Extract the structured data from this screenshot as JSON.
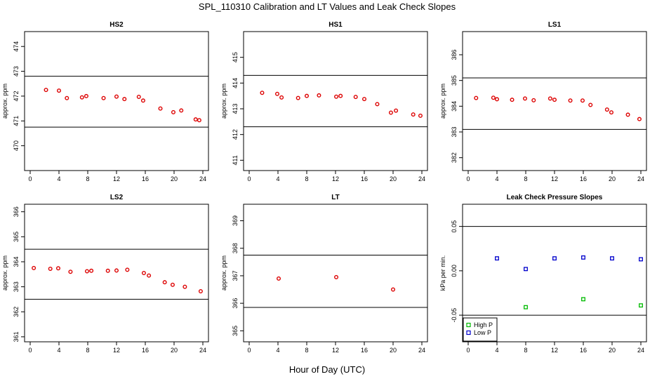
{
  "title": "SPL_110310  Calibration and LT Values and Leak Check Slopes",
  "xlabel": "Hour of Day (UTC)",
  "colors": {
    "red": "#dd0000",
    "green": "#00bb00",
    "blue": "#0000cc",
    "axis": "#000000"
  },
  "chart_data": [
    {
      "type": "scatter",
      "title": "HS2",
      "ylabel": "approx. ppm",
      "xlim": [
        0,
        24
      ],
      "ylim": [
        469.0,
        474.6
      ],
      "xticks": [
        0,
        4,
        8,
        12,
        16,
        20,
        24
      ],
      "yticks": [
        470,
        471,
        472,
        473,
        474
      ],
      "hlines": [
        470.75,
        472.8
      ],
      "series": [
        {
          "color": "red",
          "x": [
            2.2,
            4.0,
            5.1,
            7.2,
            7.8,
            10.2,
            12.0,
            13.1,
            15.1,
            15.7,
            18.1,
            19.9,
            21.0,
            23.0,
            23.5
          ],
          "y": [
            472.25,
            472.22,
            471.92,
            471.95,
            472.0,
            471.92,
            471.98,
            471.88,
            471.97,
            471.82,
            471.5,
            471.35,
            471.42,
            471.06,
            471.03
          ]
        }
      ],
      "grid": false
    },
    {
      "type": "scatter",
      "title": "HS1",
      "ylabel": "approx. ppm",
      "xlim": [
        0,
        24
      ],
      "ylim": [
        410.6,
        416.0
      ],
      "xticks": [
        0,
        4,
        8,
        12,
        16,
        20,
        24
      ],
      "yticks": [
        411,
        412,
        413,
        414,
        415
      ],
      "hlines": [
        412.3,
        414.3
      ],
      "series": [
        {
          "color": "red",
          "x": [
            1.8,
            3.9,
            4.5,
            6.8,
            8.0,
            9.7,
            12.1,
            12.7,
            14.8,
            16.0,
            17.8,
            19.7,
            20.4,
            22.8,
            23.8
          ],
          "y": [
            413.62,
            413.58,
            413.44,
            413.42,
            413.5,
            413.52,
            413.47,
            413.5,
            413.46,
            413.38,
            413.18,
            412.85,
            412.93,
            412.78,
            412.73
          ]
        }
      ],
      "grid": false
    },
    {
      "type": "scatter",
      "title": "LS1",
      "ylabel": "approx. ppm",
      "xlim": [
        0,
        24
      ],
      "ylim": [
        381.5,
        386.9
      ],
      "xticks": [
        0,
        4,
        8,
        12,
        16,
        20,
        24
      ],
      "yticks": [
        382,
        383,
        384,
        385,
        386
      ],
      "hlines": [
        383.1,
        385.1
      ],
      "series": [
        {
          "color": "red",
          "x": [
            1.1,
            3.5,
            4.0,
            6.1,
            7.9,
            9.1,
            11.4,
            12.0,
            14.2,
            15.9,
            17.0,
            19.3,
            19.9,
            22.2,
            23.8
          ],
          "y": [
            384.32,
            384.33,
            384.27,
            384.25,
            384.3,
            384.23,
            384.3,
            384.25,
            384.22,
            384.22,
            384.05,
            383.87,
            383.76,
            383.67,
            383.5
          ]
        }
      ],
      "grid": false
    },
    {
      "type": "scatter",
      "title": "LS2",
      "ylabel": "approx. ppm",
      "xlim": [
        0,
        24
      ],
      "ylim": [
        360.8,
        366.3
      ],
      "xticks": [
        0,
        4,
        8,
        12,
        16,
        20,
        24
      ],
      "yticks": [
        361,
        362,
        363,
        364,
        365,
        366
      ],
      "hlines": [
        362.5,
        364.5
      ],
      "series": [
        {
          "color": "red",
          "x": [
            0.5,
            2.8,
            3.9,
            5.6,
            7.9,
            8.5,
            10.8,
            12.0,
            13.5,
            15.8,
            16.5,
            18.7,
            19.8,
            21.5,
            23.7
          ],
          "y": [
            363.75,
            363.72,
            363.74,
            363.6,
            363.62,
            363.64,
            363.64,
            363.65,
            363.68,
            363.55,
            363.45,
            363.18,
            363.08,
            363.0,
            362.82
          ]
        }
      ],
      "grid": false
    },
    {
      "type": "scatter",
      "title": "LT",
      "ylabel": "approx. ppm",
      "xlim": [
        0,
        24
      ],
      "ylim": [
        364.6,
        369.6
      ],
      "xticks": [
        0,
        4,
        8,
        12,
        16,
        20,
        24
      ],
      "yticks": [
        365,
        366,
        367,
        368,
        369
      ],
      "hlines": [
        365.85,
        367.75
      ],
      "series": [
        {
          "color": "red",
          "x": [
            4.1,
            12.1,
            20.0
          ],
          "y": [
            366.9,
            366.95,
            366.5
          ]
        }
      ],
      "grid": false
    },
    {
      "type": "scatter",
      "title": "Leak Check Pressure Slopes",
      "ylabel": "kPa per min.",
      "xlim": [
        0,
        24
      ],
      "ylim": [
        -0.08,
        0.075
      ],
      "xticks": [
        0,
        4,
        8,
        12,
        16,
        20,
        24
      ],
      "yticks": [
        -0.05,
        0.0,
        0.05
      ],
      "ytick_labels": [
        "-0.05",
        "0.00",
        "0.05"
      ],
      "hlines": [
        -0.05,
        0.05
      ],
      "legend": {
        "position": "bottom-left",
        "entries": [
          {
            "name": "High P",
            "color": "green"
          },
          {
            "name": "Low P",
            "color": "blue"
          }
        ]
      },
      "series": [
        {
          "name": "High P",
          "color": "green",
          "x": [
            8.0,
            16.0,
            24.0
          ],
          "y": [
            -0.041,
            -0.032,
            -0.039
          ]
        },
        {
          "name": "Low P",
          "color": "blue",
          "x": [
            4.0,
            8.0,
            12.0,
            16.0,
            20.0,
            24.0
          ],
          "y": [
            0.014,
            0.002,
            0.014,
            0.015,
            0.014,
            0.013
          ]
        }
      ],
      "grid": false
    }
  ]
}
